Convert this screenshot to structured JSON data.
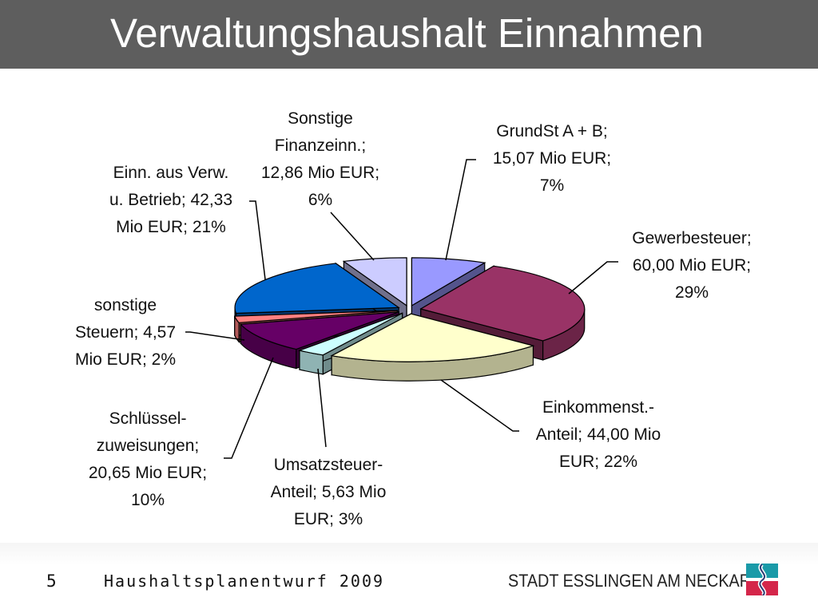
{
  "header": {
    "title": "Verwaltungshaushalt Einnahmen"
  },
  "footer": {
    "page": "5",
    "document": "Haushaltsplanentwurf 2009",
    "organization": "STADT ESSLINGEN AM NECKAR"
  },
  "chart_data": {
    "type": "pie",
    "style": "3d-exploded",
    "unit": "Mio EUR",
    "categories": [
      "GrundSt A + B",
      "Gewerbesteuer",
      "Einkommenst.-Anteil",
      "Umsatzsteuer-Anteil",
      "Schlüssel-zuweisungen",
      "sonstige Steuern",
      "Einn. aus Verw. u. Betrieb",
      "Sonstige Finanzeinn."
    ],
    "values": [
      15.07,
      60.0,
      44.0,
      5.63,
      20.65,
      4.57,
      42.33,
      12.86
    ],
    "percentages": [
      7,
      29,
      22,
      3,
      10,
      2,
      21,
      6
    ],
    "colors": [
      "#9999ff",
      "#993366",
      "#ffffcc",
      "#ccffff",
      "#660066",
      "#ff8080",
      "#0066cc",
      "#ccccff"
    ],
    "labels": [
      [
        "GrundSt A + B;",
        "15,07 Mio EUR;",
        "7%"
      ],
      [
        "Gewerbesteuer;",
        "60,00 Mio EUR;",
        "29%"
      ],
      [
        "Einkommenst.-",
        "Anteil; 44,00 Mio",
        "EUR; 22%"
      ],
      [
        "Umsatzsteuer-",
        "Anteil; 5,63 Mio",
        "EUR; 3%"
      ],
      [
        "Schlüssel-",
        "zuweisungen;",
        "20,65 Mio EUR;",
        "10%"
      ],
      [
        "sonstige",
        "Steuern; 4,57",
        "Mio EUR; 2%"
      ],
      [
        "Einn. aus Verw.",
        "u. Betrieb; 42,33",
        "Mio EUR; 21%"
      ],
      [
        "Sonstige",
        "Finanzeinn.;",
        "12,86 Mio EUR;",
        "6%"
      ]
    ]
  }
}
